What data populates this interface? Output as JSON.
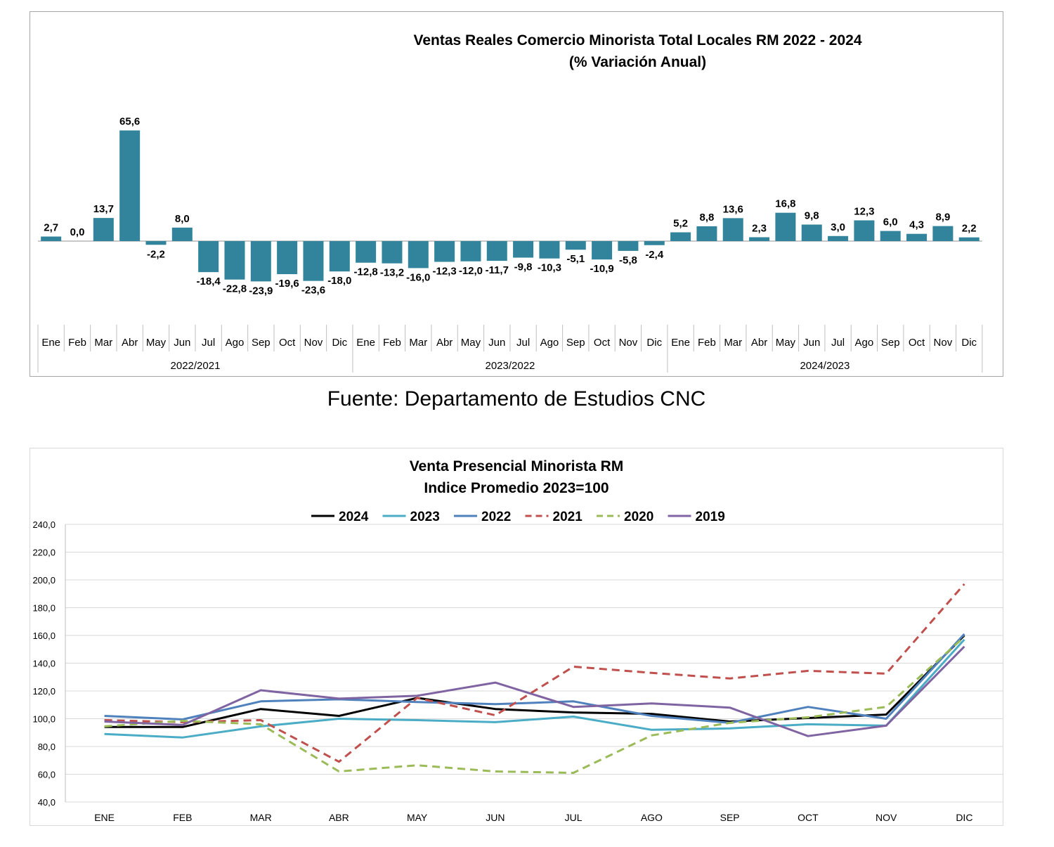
{
  "source_text": "Fuente: Departamento de Estudios CNC",
  "chart_data": [
    {
      "type": "bar",
      "title": "Ventas Reales Comercio Minorista  Total Locales RM 2022 - 2024",
      "subtitle": "(% Variación Anual)",
      "bar_color": "#31849b",
      "months": [
        "Ene",
        "Feb",
        "Mar",
        "Abr",
        "May",
        "Jun",
        "Jul",
        "Ago",
        "Sep",
        "Oct",
        "Nov",
        "Dic"
      ],
      "groups": [
        "2022/2021",
        "2023/2022",
        "2024/2023"
      ],
      "values": [
        2.7,
        0.0,
        13.7,
        65.6,
        -2.2,
        8.0,
        -18.4,
        -22.8,
        -23.9,
        -19.6,
        -23.6,
        -18.0,
        -12.8,
        -13.2,
        -16.0,
        -12.3,
        -12.0,
        -11.7,
        -9.8,
        -10.3,
        -5.1,
        -10.9,
        -5.8,
        -2.4,
        5.2,
        8.8,
        13.6,
        2.3,
        16.8,
        9.8,
        3.0,
        12.3,
        6.0,
        4.3,
        8.9,
        2.2
      ],
      "labels": [
        "2,7",
        "0,0",
        "13,7",
        "65,6",
        "-2,2",
        "8,0",
        "-18,4",
        "-22,8",
        "-23,9",
        "-19,6",
        "-23,6",
        "-18,0",
        "-12,8",
        "-13,2",
        "-16,0",
        "-12,3",
        "-12,0",
        "-11,7",
        "-9,8",
        "-10,3",
        "-5,1",
        "-10,9",
        "-5,8",
        "-2,4",
        "5,2",
        "8,8",
        "13,6",
        "2,3",
        "16,8",
        "9,8",
        "3,0",
        "12,3",
        "6,0",
        "4,3",
        "8,9",
        "2,2"
      ]
    },
    {
      "type": "line",
      "title": "Venta Presencial Minorista RM",
      "subtitle": "Indice Promedio 2023=100",
      "categories": [
        "ENE",
        "FEB",
        "MAR",
        "ABR",
        "MAY",
        "JUN",
        "JUL",
        "AGO",
        "SEP",
        "OCT",
        "NOV",
        "DIC"
      ],
      "ylim": [
        40,
        240
      ],
      "yticks": [
        "40,0",
        "60,0",
        "80,0",
        "100,0",
        "120,0",
        "140,0",
        "160,0",
        "180,0",
        "200,0",
        "220,0",
        "240,0"
      ],
      "grid": true,
      "legend": "top",
      "series": [
        {
          "name": "2024",
          "color": "#000000",
          "dashed": false,
          "values": [
            94,
            94,
            107,
            102,
            115,
            107,
            104.5,
            103.5,
            98,
            100.5,
            103,
            160
          ]
        },
        {
          "name": "2023",
          "color": "#4bacc6",
          "dashed": false,
          "values": [
            89,
            86.5,
            94.5,
            100,
            99,
            97.5,
            101.5,
            92,
            93,
            96,
            95,
            157
          ]
        },
        {
          "name": "2022",
          "color": "#4f81bd",
          "dashed": false,
          "values": [
            102,
            99.5,
            112.5,
            114,
            112,
            110.5,
            112.5,
            102,
            97,
            108.5,
            100,
            161
          ]
        },
        {
          "name": "2021",
          "color": "#c0504d",
          "dashed": true,
          "values": [
            99,
            97.5,
            99,
            69,
            115,
            102.5,
            137.5,
            133,
            129,
            134.5,
            132.5,
            197
          ]
        },
        {
          "name": "2020",
          "color": "#9bbb59",
          "dashed": true,
          "values": [
            94.5,
            98.5,
            96,
            62,
            66.5,
            62,
            61,
            88,
            97,
            101,
            108.5,
            159
          ]
        },
        {
          "name": "2019",
          "color": "#8064a2",
          "dashed": false,
          "values": [
            98,
            95.5,
            120.5,
            114.5,
            116.5,
            126,
            108.5,
            111,
            108,
            87.5,
            95,
            152
          ]
        }
      ]
    }
  ]
}
